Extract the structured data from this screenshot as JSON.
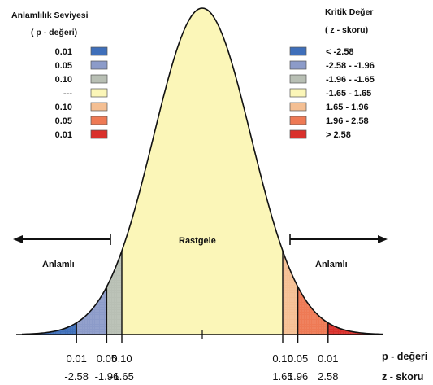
{
  "left_legend": {
    "title": "Anlamlılık Seviyesi",
    "subtitle": "( p - değeri)",
    "items": [
      {
        "label": "0.01",
        "color": "#3f6fba"
      },
      {
        "label": "0.05",
        "color": "#8c9bc9"
      },
      {
        "label": "0.10",
        "color": "#b8bfb4"
      },
      {
        "label": "---",
        "color": "#fbf6b8"
      },
      {
        "label": "0.10",
        "color": "#f4bf93"
      },
      {
        "label": "0.05",
        "color": "#ee7a55"
      },
      {
        "label": "0.01",
        "color": "#d9302b"
      }
    ]
  },
  "right_legend": {
    "title": "Kritik Değer",
    "subtitle": "( z - skoru)",
    "items": [
      {
        "label": "< -2.58",
        "color": "#3f6fba"
      },
      {
        "label": "-2.58 - -1.96",
        "color": "#8c9bc9"
      },
      {
        "label": "-1.96 - -1.65",
        "color": "#b8bfb4"
      },
      {
        "label": "-1.65 - 1.65",
        "color": "#fbf6b8"
      },
      {
        "label": "1.65 - 1.96",
        "color": "#f4bf93"
      },
      {
        "label": "1.96 - 2.58",
        "color": "#ee7a55"
      },
      {
        "label": "> 2.58",
        "color": "#d9302b"
      }
    ]
  },
  "regions": {
    "left": "Anlamlı",
    "center": "Rastgele",
    "right": "Anlamlı"
  },
  "axis": {
    "p_label": "p - değeri",
    "z_label": "z - skoru",
    "ticks": [
      {
        "p": "0.01",
        "z": "-2.58",
        "zval": -2.58
      },
      {
        "p": "0.05",
        "z": "-1.96",
        "zval": -1.96
      },
      {
        "p": "0.10",
        "z": "-1.65",
        "zval": -1.65
      },
      {
        "p": "0.10",
        "z": "1.65",
        "zval": 1.65
      },
      {
        "p": "0.05",
        "z": "1.96",
        "zval": 1.96
      },
      {
        "p": "0.01",
        "z": "2.58",
        "zval": 2.58
      }
    ]
  }
}
